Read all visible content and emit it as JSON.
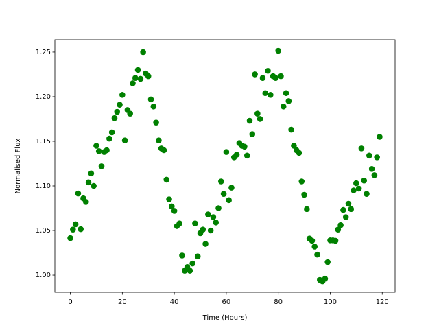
{
  "chart_data": {
    "type": "scatter",
    "xlabel": "Time (Hours)",
    "ylabel": "Normalised Flux",
    "color": "#008000",
    "x": [
      0,
      1,
      2,
      3,
      4,
      5,
      6,
      7,
      8,
      9,
      10,
      11,
      12,
      13,
      14,
      15,
      16,
      17,
      18,
      19,
      20,
      21,
      22,
      23,
      24,
      25,
      26,
      27,
      28,
      29,
      30,
      31,
      32,
      33,
      34,
      35,
      36,
      37,
      38,
      39,
      40,
      41,
      42,
      43,
      44,
      45,
      46,
      47,
      48,
      49,
      50,
      51,
      52,
      53,
      54,
      55,
      56,
      57,
      58,
      59,
      60,
      61,
      62,
      63,
      64,
      65,
      66,
      67,
      68,
      69,
      70,
      71,
      72,
      73,
      74,
      75,
      76,
      77,
      78,
      79,
      80,
      81,
      82,
      83,
      84,
      85,
      86,
      87,
      88,
      89,
      90,
      91,
      92,
      93,
      94,
      95,
      96,
      97,
      98,
      99,
      100,
      101,
      102,
      103,
      104,
      105,
      106,
      107,
      108,
      109,
      110,
      111,
      112,
      113,
      114,
      115,
      116,
      117,
      118,
      119
    ],
    "values": [
      1.0415,
      1.051,
      1.057,
      1.0915,
      1.0515,
      1.086,
      1.082,
      1.104,
      1.114,
      1.1,
      1.145,
      1.139,
      1.122,
      1.138,
      1.14,
      1.153,
      1.16,
      1.176,
      1.183,
      1.191,
      1.202,
      1.151,
      1.185,
      1.181,
      1.215,
      1.221,
      1.23,
      1.22,
      1.25,
      1.226,
      1.223,
      1.197,
      1.189,
      1.171,
      1.151,
      1.142,
      1.14,
      1.107,
      1.085,
      1.077,
      1.072,
      1.055,
      1.058,
      1.022,
      1.005,
      1.009,
      1.005,
      1.013,
      1.058,
      1.021,
      1.047,
      1.051,
      1.035,
      1.068,
      1.05,
      1.065,
      1.059,
      1.075,
      1.105,
      1.091,
      1.138,
      1.084,
      1.098,
      1.132,
      1.135,
      1.148,
      1.145,
      1.144,
      1.134,
      1.173,
      1.158,
      1.225,
      1.181,
      1.175,
      1.221,
      1.204,
      1.229,
      1.202,
      1.223,
      1.221,
      1.2515,
      1.223,
      1.189,
      1.204,
      1.195,
      1.163,
      1.145,
      1.14,
      1.137,
      1.105,
      1.09,
      1.074,
      1.041,
      1.0385,
      1.032,
      1.023,
      0.9946,
      0.993,
      0.996,
      1.0146,
      1.039,
      1.039,
      1.0385,
      1.051,
      1.056,
      1.073,
      1.065,
      1.08,
      1.074,
      1.095,
      1.103,
      1.097,
      1.142,
      1.106,
      1.091,
      1.134,
      1.119,
      1.112,
      1.132,
      1.155
    ],
    "xlim": [
      -5.95,
      124.95
    ],
    "xticks": [
      0,
      20,
      40,
      60,
      80,
      100,
      120
    ],
    "ylim": [
      0.9808,
      1.2638
    ],
    "yticks": [
      {
        "value": 1,
        "label": "1.00"
      },
      1.05,
      {
        "value": 1.1,
        "label": "1.10"
      },
      1.15,
      {
        "value": 1.2,
        "label": "1.20"
      },
      1.25
    ]
  }
}
